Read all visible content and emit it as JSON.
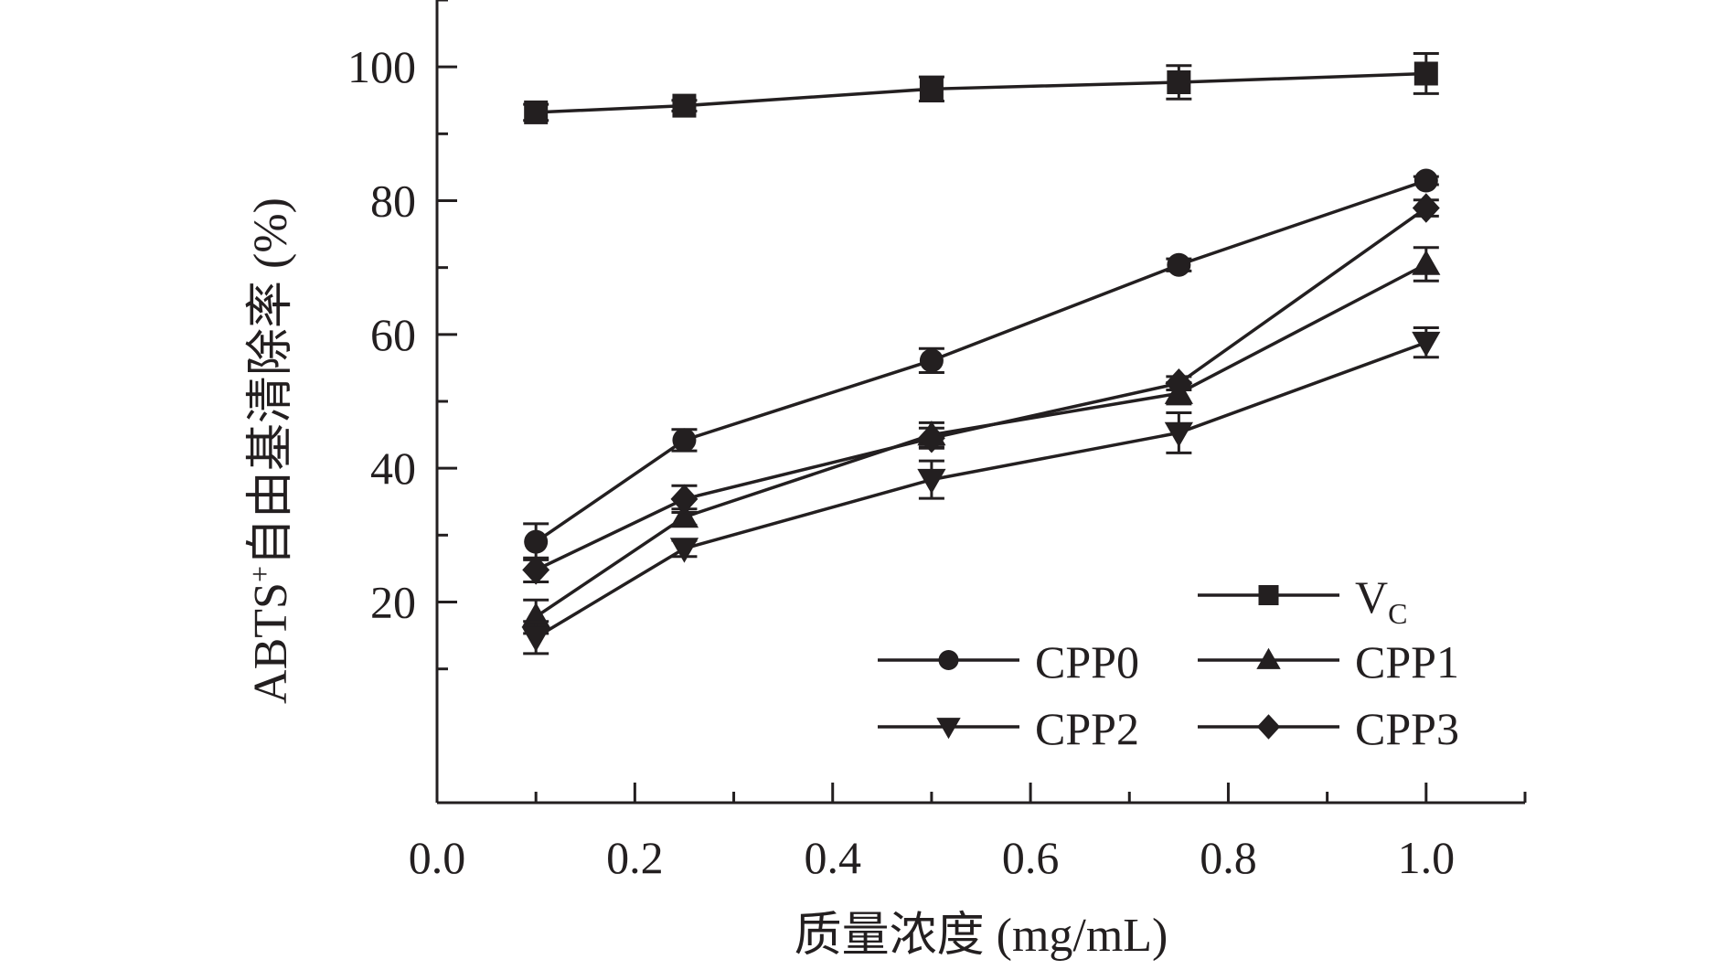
{
  "chart_data": {
    "type": "line",
    "xlabel": "质量浓度 (mg/mL)",
    "ylabel_main": "ABTS",
    "ylabel_sup": "+",
    "ylabel_rest": "自由基清除率 (%)",
    "xlim": [
      0.0,
      1.1
    ],
    "ylim": [
      -10,
      110
    ],
    "x_ticks": [
      0.0,
      0.2,
      0.4,
      0.6,
      0.8,
      1.0
    ],
    "x_tick_labels": [
      "0.0",
      "0.2",
      "0.4",
      "0.6",
      "0.8",
      "1.0"
    ],
    "x_minor_ticks": [
      0.1,
      0.3,
      0.5,
      0.7,
      0.9,
      1.1
    ],
    "y_ticks": [
      20,
      40,
      60,
      80,
      100
    ],
    "y_tick_labels": [
      "20",
      "40",
      "60",
      "80",
      "100"
    ],
    "y_minor_ticks": [
      10,
      30,
      50,
      70,
      90,
      110
    ],
    "grid": false,
    "legend_position": "bottom-right",
    "x": [
      0.1,
      0.25,
      0.5,
      0.75,
      1.0
    ],
    "series": [
      {
        "name": "V",
        "name_sub": "C",
        "marker": "square",
        "values": [
          93.2,
          94.2,
          96.7,
          97.7,
          99.0
        ],
        "errors": [
          1.2,
          0.8,
          1.8,
          2.5,
          3.0
        ]
      },
      {
        "name": "CPP0",
        "marker": "circle",
        "values": [
          29.0,
          44.2,
          56.1,
          70.4,
          83.0
        ],
        "errors": [
          2.7,
          1.6,
          1.8,
          0.9,
          0.6
        ]
      },
      {
        "name": "CPP1",
        "marker": "triangle-up",
        "values": [
          17.8,
          32.7,
          45.0,
          51.2,
          70.5
        ],
        "errors": [
          2.5,
          1.2,
          1.8,
          1.6,
          2.5
        ]
      },
      {
        "name": "CPP2",
        "marker": "triangle-down",
        "values": [
          14.7,
          28.0,
          38.3,
          45.3,
          58.8
        ],
        "errors": [
          2.4,
          1.2,
          2.8,
          3.0,
          2.2
        ]
      },
      {
        "name": "CPP3",
        "marker": "diamond",
        "values": [
          24.8,
          35.4,
          44.5,
          52.7,
          78.9
        ],
        "errors": [
          1.8,
          2.0,
          1.5,
          1.0,
          1.2
        ]
      }
    ],
    "colors": {
      "line": "#231f20"
    }
  }
}
